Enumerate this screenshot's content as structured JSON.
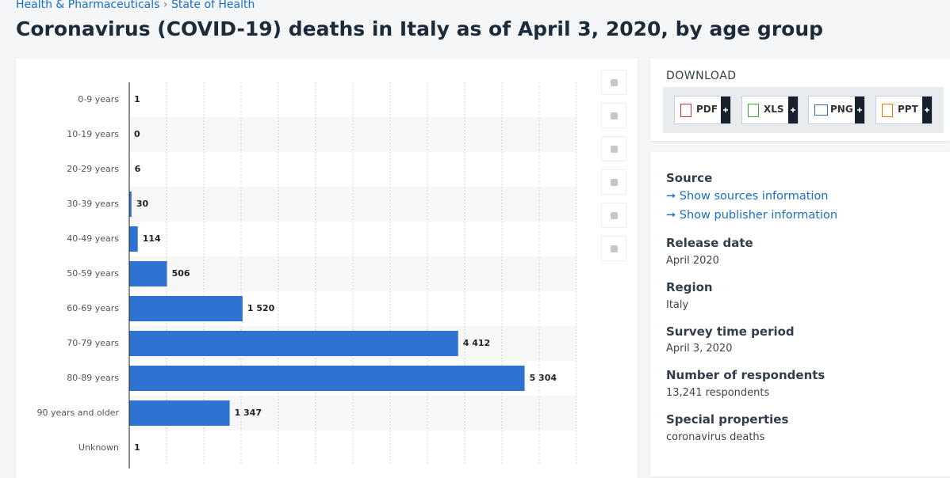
{
  "breadcrumb": [
    "Health & Pharmaceuticals",
    "State of Health"
  ],
  "chart_data": {
    "type": "hbar",
    "title": "Coronavirus (COVID-19) deaths in Italy as of April 3, 2020, by age group",
    "categories": [
      "0-9 years",
      "10-19 years",
      "20-29 years",
      "30-39 years",
      "40-49 years",
      "50-59 years",
      "60-69 years",
      "70-79 years",
      "80-89 years",
      "90 years and older",
      "Unknown"
    ],
    "values": [
      1,
      0,
      6,
      30,
      114,
      506,
      1520,
      4412,
      5304,
      1347,
      1
    ],
    "value_labels": [
      "1",
      "0",
      "6",
      "30",
      "114",
      "506",
      "1 520",
      "4 412",
      "5 304",
      "1 347",
      "1"
    ],
    "color": "#2e72d2",
    "xlim": [
      0,
      6000
    ],
    "xticks": [
      0,
      500,
      1000,
      1500,
      2000,
      2500,
      3000,
      3500,
      4000,
      4500,
      5000,
      5500,
      6000
    ],
    "grid": true
  },
  "download": {
    "label": "DOWNLOAD",
    "formats": [
      "PDF",
      "XLS",
      "PNG",
      "PPT"
    ]
  },
  "source": {
    "label": "Source",
    "links": [
      "Show sources information",
      "Show publisher information"
    ]
  },
  "details": [
    {
      "label": "Release date",
      "value": "April 2020"
    },
    {
      "label": "Region",
      "value": "Italy"
    },
    {
      "label": "Survey time period",
      "value": "April 3, 2020"
    },
    {
      "label": "Number of respondents",
      "value": "13,241 respondents"
    },
    {
      "label": "Special properties",
      "value": "coronavirus deaths"
    }
  ]
}
